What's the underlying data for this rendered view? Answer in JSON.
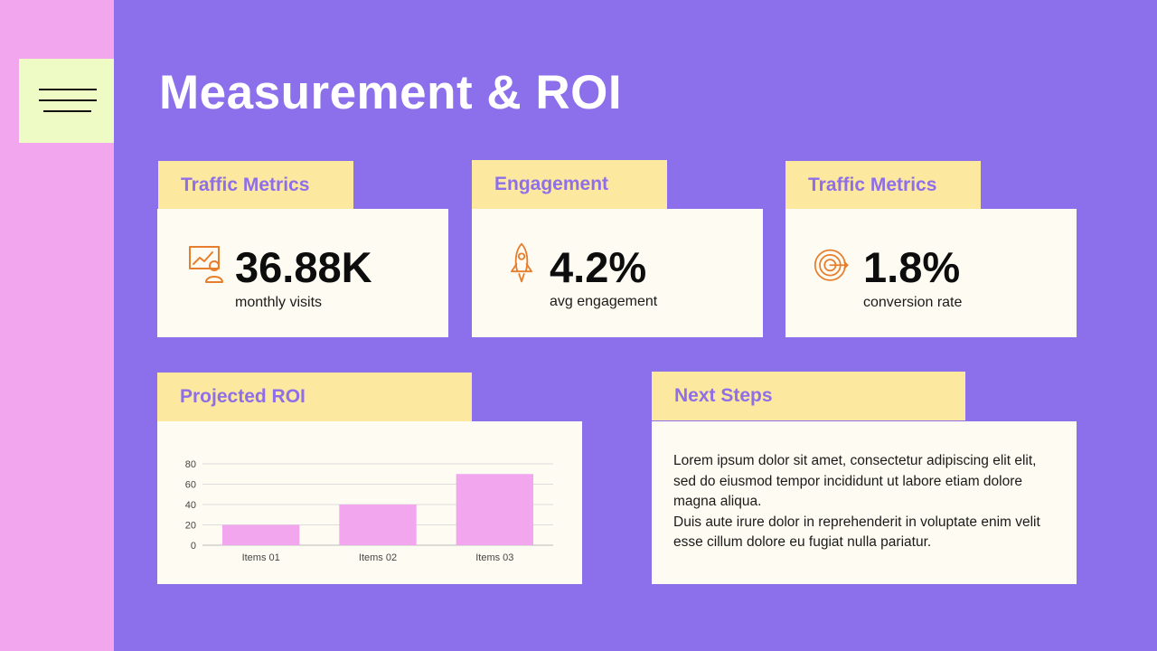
{
  "slide": {
    "title": "Measurement & ROI",
    "colors": {
      "background": "#8b6feb",
      "strip": "#f2a6ee",
      "menu_box": "#eefbc5",
      "tab": "#fce89f",
      "tab_text": "#8e6fe8",
      "card": "#fefcf2",
      "icon": "#e67e2e",
      "bar": "#f2a6ee"
    }
  },
  "metrics": [
    {
      "tab": "Traffic Metrics",
      "value": "36.88K",
      "label": "monthly visits",
      "icon": "presentation-chart-icon"
    },
    {
      "tab": "Engagement",
      "value": "4.2%",
      "label": "avg engagement",
      "icon": "rocket-icon"
    },
    {
      "tab": "Traffic Metrics",
      "value": "1.8%",
      "label": "conversion rate",
      "icon": "target-icon"
    }
  ],
  "roi": {
    "tab": "Projected ROI"
  },
  "chart_data": {
    "type": "bar",
    "categories": [
      "Items 01",
      "Items 02",
      "Items 03"
    ],
    "values": [
      20,
      40,
      70
    ],
    "ylim": [
      0,
      80
    ],
    "yticks": [
      "0",
      "20",
      "40",
      "60",
      "80"
    ],
    "grid": true,
    "title": "",
    "xlabel": "",
    "ylabel": ""
  },
  "next_steps": {
    "tab": "Next Steps",
    "paragraphs": [
      "Lorem ipsum dolor sit amet, consectetur adipiscing elit elit, sed do eiusmod tempor incididunt ut labore etiam dolore magna aliqua.",
      "Duis aute irure dolor in reprehenderit in voluptate enim velit esse cillum dolore eu fugiat nulla pariatur."
    ]
  }
}
